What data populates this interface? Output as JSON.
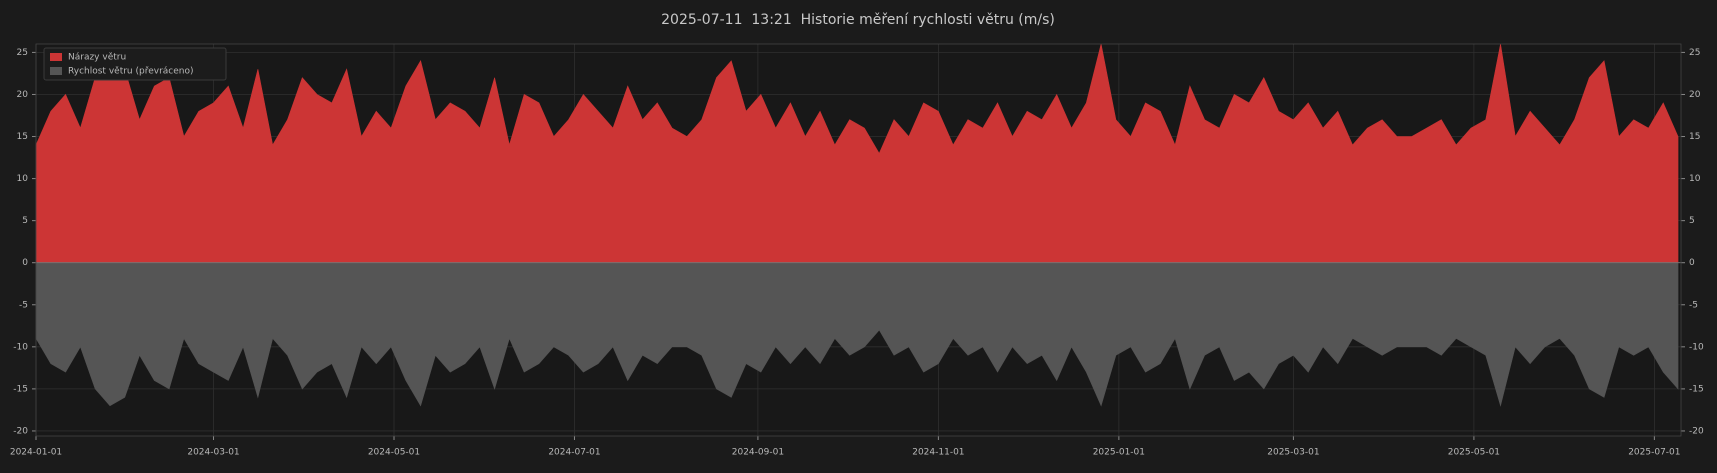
{
  "chart_data": {
    "type": "area",
    "title": "2025-07-11  13:21  Historie měření rychlosti větru (m/s)",
    "x": [
      "2024-01-01",
      "2024-01-06",
      "2024-01-11",
      "2024-01-16",
      "2024-01-21",
      "2024-01-26",
      "2024-01-31",
      "2024-02-05",
      "2024-02-10",
      "2024-02-15",
      "2024-02-20",
      "2024-02-25",
      "2024-03-01",
      "2024-03-06",
      "2024-03-11",
      "2024-03-16",
      "2024-03-21",
      "2024-03-26",
      "2024-03-31",
      "2024-04-05",
      "2024-04-10",
      "2024-04-15",
      "2024-04-20",
      "2024-04-25",
      "2024-04-30",
      "2024-05-05",
      "2024-05-10",
      "2024-05-15",
      "2024-05-20",
      "2024-05-25",
      "2024-05-30",
      "2024-06-04",
      "2024-06-09",
      "2024-06-14",
      "2024-06-19",
      "2024-06-24",
      "2024-06-29",
      "2024-07-04",
      "2024-07-09",
      "2024-07-14",
      "2024-07-19",
      "2024-07-24",
      "2024-07-29",
      "2024-08-03",
      "2024-08-08",
      "2024-08-13",
      "2024-08-18",
      "2024-08-23",
      "2024-08-28",
      "2024-09-02",
      "2024-09-07",
      "2024-09-12",
      "2024-09-17",
      "2024-09-22",
      "2024-09-27",
      "2024-10-02",
      "2024-10-07",
      "2024-10-12",
      "2024-10-17",
      "2024-10-22",
      "2024-10-27",
      "2024-11-01",
      "2024-11-06",
      "2024-11-11",
      "2024-11-16",
      "2024-11-21",
      "2024-11-26",
      "2024-12-01",
      "2024-12-06",
      "2024-12-11",
      "2024-12-16",
      "2024-12-21",
      "2024-12-26",
      "2024-12-31",
      "2025-01-05",
      "2025-01-10",
      "2025-01-15",
      "2025-01-20",
      "2025-01-25",
      "2025-01-30",
      "2025-02-04",
      "2025-02-09",
      "2025-02-14",
      "2025-02-19",
      "2025-02-24",
      "2025-03-01",
      "2025-03-06",
      "2025-03-11",
      "2025-03-16",
      "2025-03-21",
      "2025-03-26",
      "2025-03-31",
      "2025-04-05",
      "2025-04-10",
      "2025-04-15",
      "2025-04-20",
      "2025-04-25",
      "2025-04-30",
      "2025-05-05",
      "2025-05-10",
      "2025-05-15",
      "2025-05-20",
      "2025-05-25",
      "2025-05-30",
      "2025-06-04",
      "2025-06-09",
      "2025-06-14",
      "2025-06-19",
      "2025-06-24",
      "2025-06-29",
      "2025-07-04",
      "2025-07-09"
    ],
    "series": [
      {
        "name": "Nárazy větru",
        "color": "#cc3535",
        "values": [
          14,
          18,
          20,
          16,
          22,
          24,
          23,
          17,
          21,
          22,
          15,
          18,
          19,
          21,
          16,
          23,
          14,
          17,
          22,
          20,
          19,
          23,
          15,
          18,
          16,
          21,
          24,
          17,
          19,
          18,
          16,
          22,
          14,
          20,
          19,
          15,
          17,
          20,
          18,
          16,
          21,
          17,
          19,
          16,
          15,
          17,
          22,
          24,
          18,
          20,
          16,
          19,
          15,
          18,
          14,
          17,
          16,
          13,
          17,
          15,
          19,
          18,
          14,
          17,
          16,
          19,
          15,
          18,
          17,
          20,
          16,
          19,
          26,
          17,
          15,
          19,
          18,
          14,
          21,
          17,
          16,
          20,
          19,
          22,
          18,
          17,
          19,
          16,
          18,
          14,
          16,
          17,
          15,
          15,
          16,
          17,
          14,
          16,
          17,
          26,
          15,
          18,
          16,
          14,
          17,
          22,
          24,
          15,
          17,
          16,
          19,
          15
        ]
      },
      {
        "name": "Rychlost větru (převráceno)",
        "color": "#555555",
        "values": [
          -9,
          -12,
          -13,
          -10,
          -15,
          -17,
          -16,
          -11,
          -14,
          -15,
          -9,
          -12,
          -13,
          -14,
          -10,
          -16,
          -9,
          -11,
          -15,
          -13,
          -12,
          -16,
          -10,
          -12,
          -10,
          -14,
          -17,
          -11,
          -13,
          -12,
          -10,
          -15,
          -9,
          -13,
          -12,
          -10,
          -11,
          -13,
          -12,
          -10,
          -14,
          -11,
          -12,
          -10,
          -10,
          -11,
          -15,
          -16,
          -12,
          -13,
          -10,
          -12,
          -10,
          -12,
          -9,
          -11,
          -10,
          -8,
          -11,
          -10,
          -13,
          -12,
          -9,
          -11,
          -10,
          -13,
          -10,
          -12,
          -11,
          -14,
          -10,
          -13,
          -17,
          -11,
          -10,
          -13,
          -12,
          -9,
          -15,
          -11,
          -10,
          -14,
          -13,
          -15,
          -12,
          -11,
          -13,
          -10,
          -12,
          -9,
          -10,
          -11,
          -10,
          -10,
          -10,
          -11,
          -9,
          -10,
          -11,
          -17,
          -10,
          -12,
          -10,
          -9,
          -11,
          -15,
          -16,
          -10,
          -11,
          -10,
          -13,
          -15
        ]
      }
    ],
    "xlim": [
      "2024-01-01",
      "2025-07-10"
    ],
    "xticks": [
      "2024-01-01",
      "2024-03-01",
      "2024-05-01",
      "2024-07-01",
      "2024-09-01",
      "2024-11-01",
      "2025-01-01",
      "2025-03-01",
      "2025-05-01",
      "2025-07-01"
    ],
    "ylim": [
      -20.6,
      26
    ],
    "yticks": [
      -20,
      -15,
      -10,
      -5,
      0,
      5,
      10,
      15,
      20,
      25
    ],
    "grid": true,
    "legend": "upper left"
  }
}
